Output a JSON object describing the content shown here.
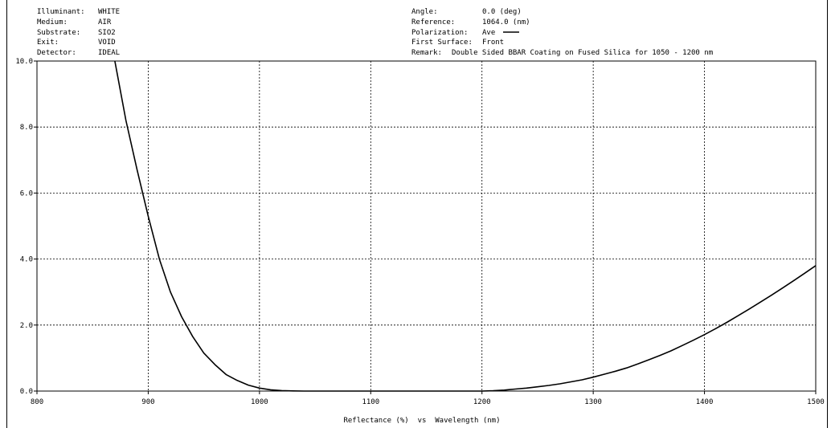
{
  "header": {
    "left": [
      {
        "key": "Illuminant:",
        "value": "WHITE"
      },
      {
        "key": "Medium:",
        "value": "AIR"
      },
      {
        "key": "Substrate:",
        "value": "SIO2"
      },
      {
        "key": "Exit:",
        "value": "VOID"
      },
      {
        "key": "Detector:",
        "value": "IDEAL"
      }
    ],
    "right": [
      {
        "key": "Angle:",
        "value": "0.0 (deg)"
      },
      {
        "key": "Reference:",
        "value": "1064.0 (nm)"
      },
      {
        "key": "Polarization:",
        "value": "Ave"
      },
      {
        "key": "First Surface:",
        "value": "Front"
      },
      {
        "key": "Remark:",
        "value": "Double Sided BBAR Coating on Fused Silica for 1050 - 1200 nm"
      }
    ]
  },
  "chart_data": {
    "type": "line",
    "title": "",
    "xlabel": "Reflectance (%)  vs  Wavelength (nm)",
    "ylabel": "",
    "xlim": [
      800,
      1500
    ],
    "ylim": [
      0,
      10
    ],
    "x_ticks": [
      "800",
      "900",
      "1000",
      "1100",
      "1200",
      "1300",
      "1400",
      "1500"
    ],
    "y_ticks": [
      "0.0",
      "2.0",
      "4.0",
      "6.0",
      "8.0",
      "10.0"
    ],
    "grid": true,
    "legend": "Polarization: Ave",
    "series": [
      {
        "name": "Ave",
        "color": "#000000",
        "x": [
          870,
          880,
          890,
          900,
          910,
          920,
          930,
          940,
          950,
          960,
          970,
          980,
          990,
          1000,
          1010,
          1020,
          1030,
          1040,
          1050,
          1075,
          1100,
          1125,
          1150,
          1175,
          1200,
          1210,
          1220,
          1230,
          1240,
          1250,
          1260,
          1270,
          1280,
          1290,
          1300,
          1310,
          1320,
          1330,
          1340,
          1350,
          1360,
          1370,
          1380,
          1390,
          1400,
          1410,
          1420,
          1430,
          1440,
          1450,
          1460,
          1470,
          1480,
          1490,
          1500
        ],
        "y": [
          10.0,
          8.2,
          6.7,
          5.3,
          4.0,
          3.0,
          2.25,
          1.65,
          1.15,
          0.8,
          0.5,
          0.32,
          0.18,
          0.09,
          0.04,
          0.015,
          0.005,
          0.0,
          0.0,
          0.0,
          0.0,
          0.0,
          0.0,
          0.0,
          0.0,
          0.01,
          0.03,
          0.06,
          0.09,
          0.13,
          0.17,
          0.22,
          0.28,
          0.34,
          0.42,
          0.51,
          0.6,
          0.7,
          0.82,
          0.95,
          1.08,
          1.22,
          1.38,
          1.54,
          1.71,
          1.89,
          2.08,
          2.28,
          2.48,
          2.69,
          2.9,
          3.12,
          3.34,
          3.57,
          3.8
        ]
      }
    ]
  }
}
